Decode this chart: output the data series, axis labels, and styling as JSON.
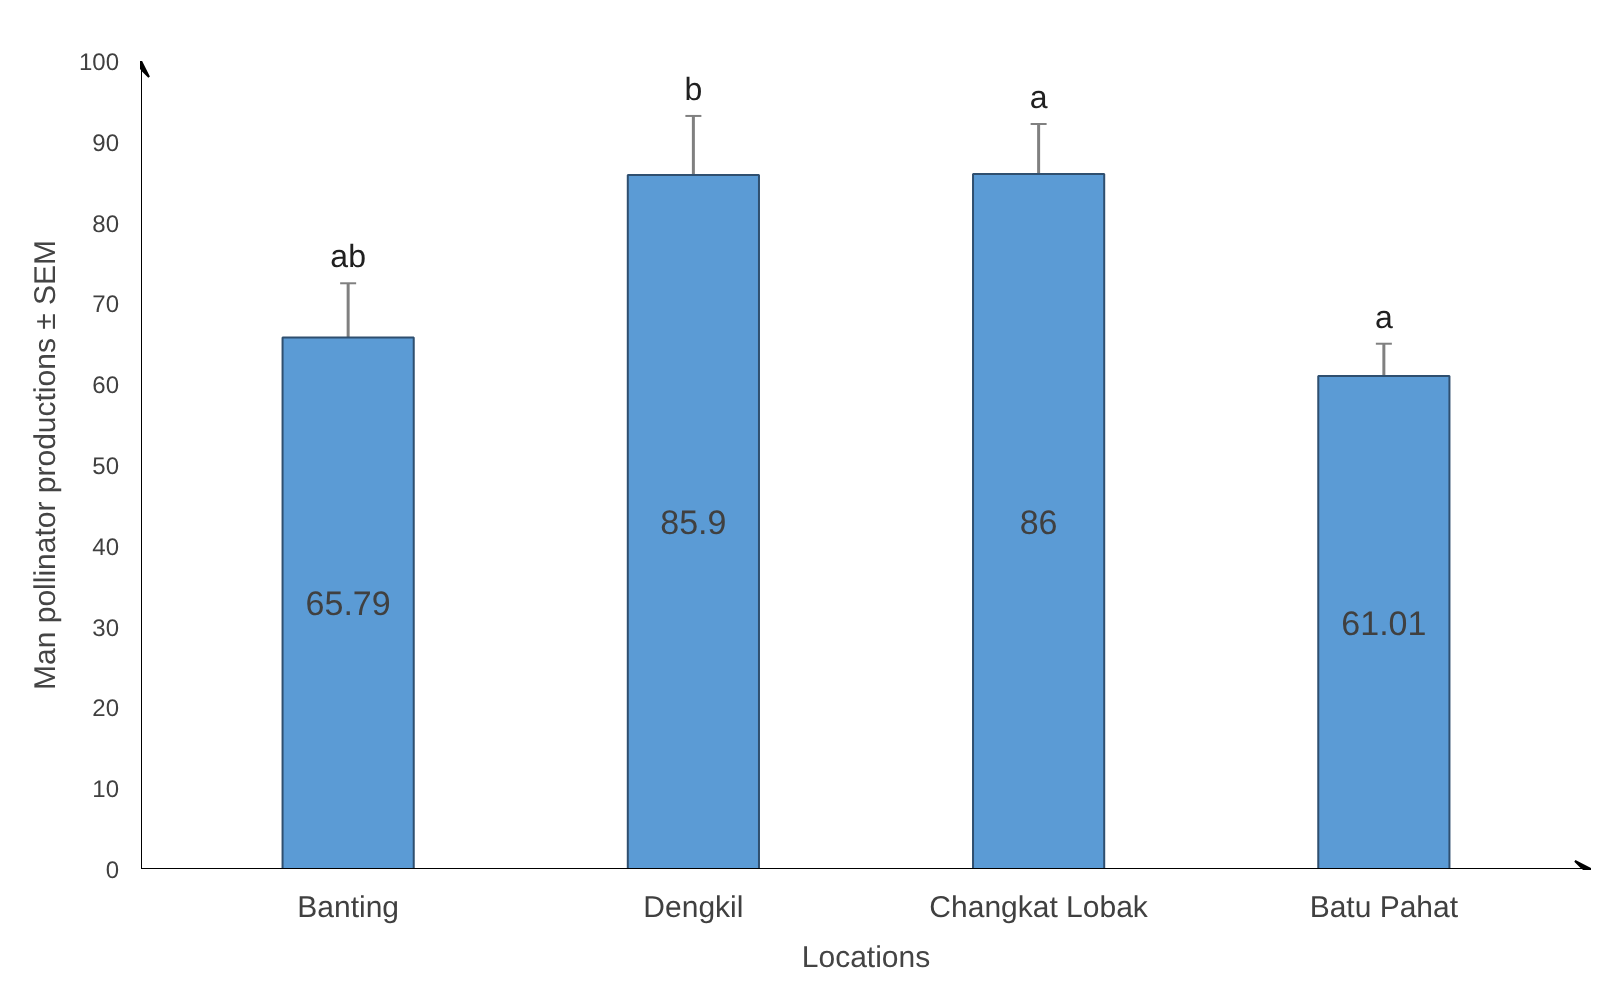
{
  "chart_data": {
    "type": "bar",
    "xlabel": "Locations",
    "ylabel": "Man pollinator productions ± SEM",
    "categories": [
      "Banting",
      "Dengkil",
      "Changkat Lobak",
      "Batu Pahat"
    ],
    "values": [
      65.79,
      85.9,
      86,
      61.01
    ],
    "color": "#5b9bd5",
    "errors": [
      6.7,
      7.3,
      6.2,
      4
    ],
    "data_labels": true,
    "ylim": [
      0,
      100
    ],
    "yticks": [
      0,
      10,
      20,
      30,
      40,
      50,
      60,
      70,
      80,
      90,
      100
    ],
    "grid": false,
    "annotations": [
      "ab",
      "b",
      "a",
      "a"
    ]
  }
}
